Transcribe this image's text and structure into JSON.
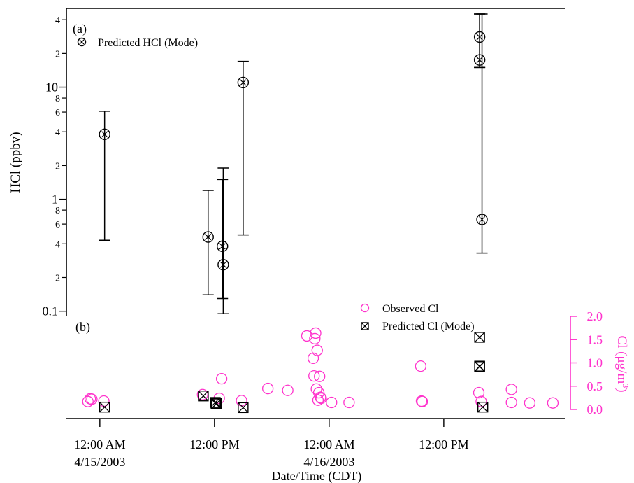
{
  "chart_data": [
    {
      "panel": "(a)",
      "type": "scatter",
      "ylabel": "HCl (ppbv)",
      "yscale": "log",
      "ylim": [
        0.09,
        45
      ],
      "y_major_ticks": [
        {
          "value": 0.1,
          "label": "0.1"
        },
        {
          "value": 1,
          "label": "1"
        },
        {
          "value": 10,
          "label": "10"
        }
      ],
      "y_minor_ticks": [
        {
          "value": 0.2,
          "label": "2"
        },
        {
          "value": 0.4,
          "label": "4"
        },
        {
          "value": 0.6,
          "label": "6"
        },
        {
          "value": 0.8,
          "label": "8"
        },
        {
          "value": 2,
          "label": "2"
        },
        {
          "value": 4,
          "label": "4"
        },
        {
          "value": 6,
          "label": "6"
        },
        {
          "value": 8,
          "label": "8"
        },
        {
          "value": 20,
          "label": "2"
        },
        {
          "value": 40,
          "label": "4"
        }
      ],
      "legend": {
        "position": "top-left",
        "entries": [
          {
            "symbol": "circle-x",
            "label": "Predicted HCl (Mode)"
          }
        ]
      },
      "series": [
        {
          "name": "Predicted HCl (Mode)",
          "points": [
            {
              "x": "2003-04-15T00:30",
              "y": 3.8,
              "y_low": 0.43,
              "y_high": 6.1
            },
            {
              "x": "2003-04-15T11:20",
              "y": 0.46,
              "y_low": 0.14,
              "y_high": 1.2
            },
            {
              "x": "2003-04-15T12:50",
              "y": 0.38,
              "y_low": 0.13,
              "y_high": 1.5
            },
            {
              "x": "2003-04-15T12:55",
              "y": 0.26,
              "y_low": 0.095,
              "y_high": 1.9
            },
            {
              "x": "2003-04-15T15:00",
              "y": 11,
              "y_low": 0.48,
              "y_high": 17
            },
            {
              "x": "2003-04-16T15:45",
              "y": 28,
              "y_low": 15,
              "y_high": 45
            },
            {
              "x": "2003-04-16T15:45",
              "y": 17.5,
              "y_low": 15,
              "y_high": 45
            },
            {
              "x": "2003-04-16T16:00",
              "y": 0.66,
              "y_low": 0.33,
              "y_high": 45
            }
          ]
        }
      ]
    },
    {
      "panel": "(b)",
      "type": "scatter",
      "xlabel": "Date/Time (CDT)",
      "ylabel": "Cl (μg/m³)",
      "ylabel_parts": {
        "main": "Cl (μg/m",
        "sup": "3",
        "close": ")"
      },
      "ylim": [
        0,
        2.0
      ],
      "y_ticks": [
        "0.0",
        "0.5",
        "1.0",
        "1.5",
        "2.0"
      ],
      "y_axis_color": "#ff33cc",
      "x_ticks": [
        {
          "value": "2003-04-15T00:00",
          "label1": "12:00 AM",
          "label2": "4/15/2003"
        },
        {
          "value": "2003-04-15T12:00",
          "label1": "12:00 PM",
          "label2": ""
        },
        {
          "value": "2003-04-16T00:00",
          "label1": "12:00 AM",
          "label2": "4/16/2003"
        },
        {
          "value": "2003-04-16T12:00",
          "label1": "12:00 PM",
          "label2": ""
        }
      ],
      "xlim": [
        "2003-04-14T20:30",
        "2003-04-17T00:40"
      ],
      "legend": {
        "position": "top-right",
        "entries": [
          {
            "symbol": "circle",
            "label": "Observed Cl",
            "color": "#ff33cc"
          },
          {
            "symbol": "box-x",
            "label": "Predicted Cl (Mode)",
            "color": "#000000"
          }
        ]
      },
      "series": [
        {
          "name": "Observed Cl",
          "color": "#ff33cc",
          "points": [
            {
              "x": "2003-04-14T22:45",
              "y": 0.17
            },
            {
              "x": "2003-04-14T23:00",
              "y": 0.23
            },
            {
              "x": "2003-04-14T23:10",
              "y": 0.22
            },
            {
              "x": "2003-04-15T00:25",
              "y": 0.18
            },
            {
              "x": "2003-04-15T10:45",
              "y": 0.32
            },
            {
              "x": "2003-04-15T12:30",
              "y": 0.24
            },
            {
              "x": "2003-04-15T12:45",
              "y": 0.66
            },
            {
              "x": "2003-04-15T14:50",
              "y": 0.19
            },
            {
              "x": "2003-04-15T17:35",
              "y": 0.45
            },
            {
              "x": "2003-04-15T19:40",
              "y": 0.41
            },
            {
              "x": "2003-04-15T21:40",
              "y": 1.58
            },
            {
              "x": "2003-04-15T22:20",
              "y": 1.1
            },
            {
              "x": "2003-04-15T22:25",
              "y": 0.72
            },
            {
              "x": "2003-04-15T22:30",
              "y": 1.52
            },
            {
              "x": "2003-04-15T22:35",
              "y": 1.64
            },
            {
              "x": "2003-04-15T22:40",
              "y": 0.44
            },
            {
              "x": "2003-04-15T22:45",
              "y": 1.27
            },
            {
              "x": "2003-04-15T22:50",
              "y": 0.2
            },
            {
              "x": "2003-04-15T22:55",
              "y": 0.36
            },
            {
              "x": "2003-04-15T23:00",
              "y": 0.71
            },
            {
              "x": "2003-04-15T23:05",
              "y": 0.26
            },
            {
              "x": "2003-04-15T23:10",
              "y": 0.24
            },
            {
              "x": "2003-04-16T00:15",
              "y": 0.15
            },
            {
              "x": "2003-04-16T02:05",
              "y": 0.15
            },
            {
              "x": "2003-04-16T09:35",
              "y": 0.93
            },
            {
              "x": "2003-04-16T09:40",
              "y": 0.18
            },
            {
              "x": "2003-04-16T09:45",
              "y": 0.17
            },
            {
              "x": "2003-04-16T15:40",
              "y": 0.36
            },
            {
              "x": "2003-04-16T15:55",
              "y": 0.17
            },
            {
              "x": "2003-04-16T19:05",
              "y": 0.43
            },
            {
              "x": "2003-04-16T19:05",
              "y": 0.15
            },
            {
              "x": "2003-04-16T21:00",
              "y": 0.14
            },
            {
              "x": "2003-04-16T23:25",
              "y": 0.14
            }
          ]
        },
        {
          "name": "Predicted Cl (Mode)",
          "color": "#000000",
          "points": [
            {
              "x": "2003-04-15T00:30",
              "y": 0.05
            },
            {
              "x": "2003-04-15T10:50",
              "y": 0.29
            },
            {
              "x": "2003-04-15T12:05",
              "y": 0.15
            },
            {
              "x": "2003-04-15T12:10",
              "y": 0.12
            },
            {
              "x": "2003-04-15T12:15",
              "y": 0.13
            },
            {
              "x": "2003-04-15T15:00",
              "y": 0.04
            },
            {
              "x": "2003-04-16T15:45",
              "y": 1.55
            },
            {
              "x": "2003-04-16T15:45",
              "y": 0.93
            },
            {
              "x": "2003-04-16T15:45",
              "y": 0.92
            },
            {
              "x": "2003-04-16T16:05",
              "y": 0.05
            }
          ]
        }
      ]
    }
  ]
}
